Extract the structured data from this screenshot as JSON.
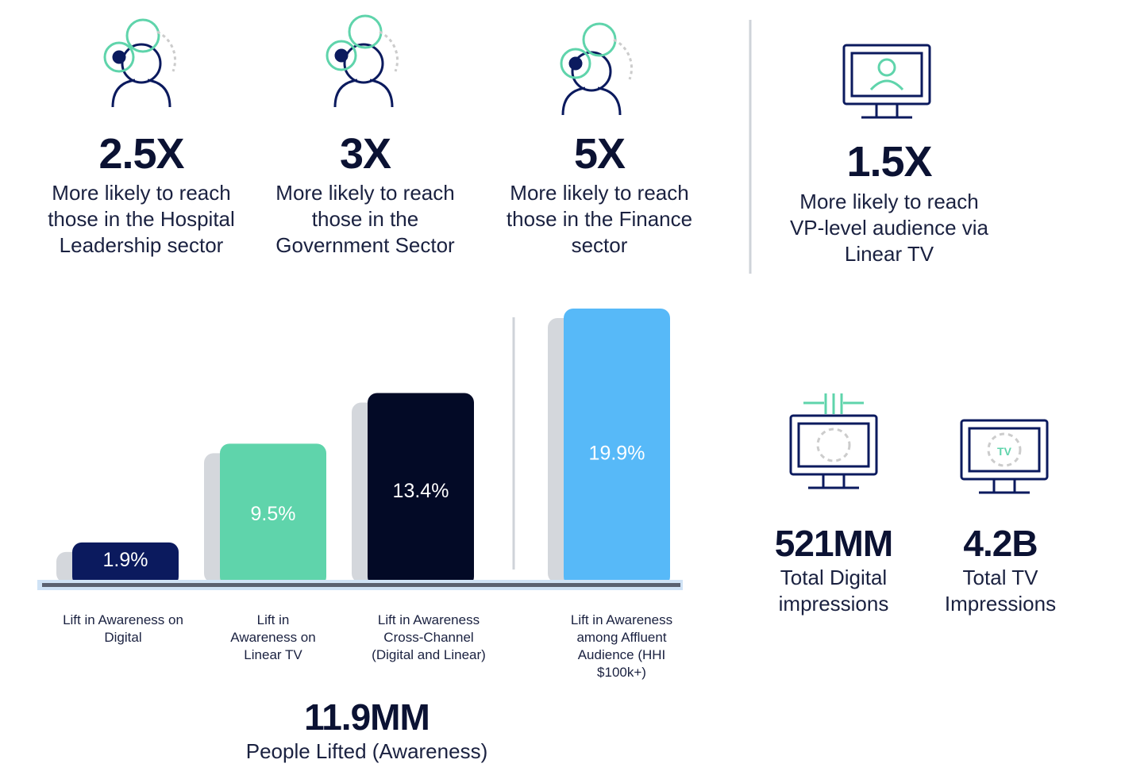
{
  "stats": [
    {
      "value": "2.5X",
      "description": "More likely to reach those in the Hospital Leadership sector"
    },
    {
      "value": "3X",
      "description": "More likely to reach those in the Government Sector"
    },
    {
      "value": "5X",
      "description": "More likely to reach those in the Finance sector"
    },
    {
      "value": "1.5X",
      "description": "More likely to reach VP-level audience via Linear TV"
    }
  ],
  "chart_data": {
    "type": "bar",
    "categories": [
      "Lift in Awareness on Digital",
      "Lift in Awareness on Linear TV",
      "Lift in Awareness Cross-Channel (Digital and Linear)",
      "Lift in Awareness among Affluent Audience (HHI $100k+)"
    ],
    "values": [
      1.9,
      9.5,
      13.4,
      19.9
    ],
    "value_labels": [
      "1.9%",
      "9.5%",
      "13.4%",
      "19.9%"
    ],
    "colors": [
      "#0b1a5e",
      "#5fd4ab",
      "#030a26",
      "#57b9f8"
    ]
  },
  "totals": [
    {
      "value": "11.9MM",
      "description": "People Lifted (Awareness)"
    },
    {
      "value": "521MM",
      "description": "Total Digital impressions"
    },
    {
      "value": "4.2B",
      "description": "Total TV Impressions"
    }
  ]
}
